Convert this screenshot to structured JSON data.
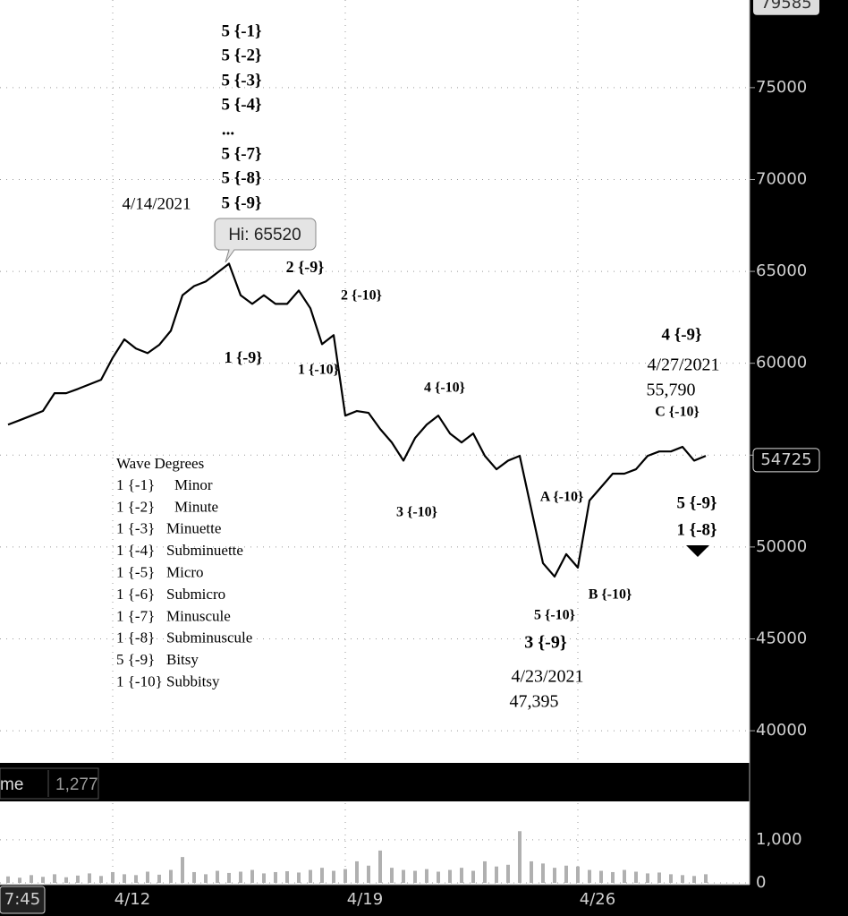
{
  "chart_data": {
    "type": "line",
    "color": "#000000",
    "categories": [
      null,
      null,
      null,
      null,
      null,
      null,
      null,
      null,
      null,
      "4/12",
      null,
      null,
      null,
      null,
      null,
      null,
      null,
      null,
      null,
      null,
      null,
      null,
      null,
      null,
      null,
      null,
      null,
      null,
      null,
      "4/19",
      null,
      null,
      null,
      null,
      null,
      null,
      null,
      null,
      null,
      null,
      null,
      null,
      null,
      null,
      null,
      null,
      null,
      null,
      null,
      "4/26",
      null,
      null,
      null,
      null,
      null,
      null,
      null,
      null,
      null,
      null,
      null
    ],
    "values": [
      56660,
      56900,
      57150,
      57400,
      58370,
      58370,
      58600,
      58850,
      59100,
      60300,
      61300,
      60800,
      60550,
      61000,
      61770,
      63700,
      64200,
      64450,
      64930,
      65420,
      63700,
      63230,
      63700,
      63230,
      63230,
      63960,
      62990,
      61040,
      61530,
      57150,
      57400,
      57300,
      56420,
      55690,
      54700,
      55930,
      56660,
      57150,
      56180,
      55690,
      56180,
      54960,
      54230,
      54700,
      54960,
      52040,
      49120,
      48390,
      49610,
      48880,
      52530,
      53260,
      53990,
      53990,
      54230,
      54960,
      55200,
      55200,
      55450,
      54700,
      54960
    ],
    "ylim": [
      38250,
      79770
    ],
    "yticks": [
      40000,
      45000,
      50000,
      55000,
      60000,
      65000,
      70000,
      75000
    ],
    "grid": true,
    "last_price": 54725,
    "scale_top": 79585,
    "high_label": "Hi: 65520",
    "volume": {
      "color": "#b0b0b0",
      "values": [
        150,
        120,
        180,
        140,
        200,
        130,
        170,
        220,
        160,
        250,
        200,
        180,
        260,
        190,
        300,
        600,
        250,
        200,
        280,
        230,
        260,
        300,
        220,
        250,
        270,
        240,
        300,
        350,
        280,
        320,
        500,
        400,
        750,
        350,
        300,
        280,
        320,
        260,
        300,
        350,
        280,
        500,
        380,
        420,
        1200,
        500,
        450,
        350,
        400,
        380,
        300,
        280,
        250,
        300,
        260,
        220,
        240,
        200,
        180,
        160,
        200
      ],
      "ylim": [
        0,
        1850
      ],
      "yticks": [
        0,
        {
          "value": 1000,
          "label": "1,000"
        }
      ]
    },
    "volume_title": "me",
    "volume_last": "1,277",
    "time_label": "7:45",
    "annotations": [
      "5 {-1}",
      "5 {-2}",
      "5 {-3}",
      "5 {-4}",
      "...",
      "5 {-7}",
      "5 {-8}",
      "5 {-9}",
      "4/14/2021",
      "2 {-9}",
      "2 {-10}",
      "1 {-9}",
      "1 {-10}",
      "4 {-10}",
      "3 {-10}",
      "A {-10}",
      "B {-10}",
      "5 {-10}",
      "3 {-9}",
      "4/23/2021",
      "47,395",
      "4 {-9}",
      "4/27/2021",
      "55,790",
      "C {-10}",
      "5 {-9}",
      "1 {-8}"
    ],
    "wave_degrees": {
      "title": "Wave Degrees",
      "rows": [
        [
          "1 {-1}",
          "Minor"
        ],
        [
          "1 {-2}",
          "Minute"
        ],
        [
          "1 {-3}",
          "Minuette"
        ],
        [
          "1 {-4}",
          "Subminuette"
        ],
        [
          "1 {-5}",
          "Micro"
        ],
        [
          "1 {-6}",
          "Submicro"
        ],
        [
          "1 {-7}",
          "Minuscule"
        ],
        [
          "1 {-8}",
          "Subminuscule"
        ],
        [
          "5 {-9}",
          "Bitsy"
        ],
        [
          "1 {-10}",
          "Subbitsy"
        ]
      ]
    }
  }
}
